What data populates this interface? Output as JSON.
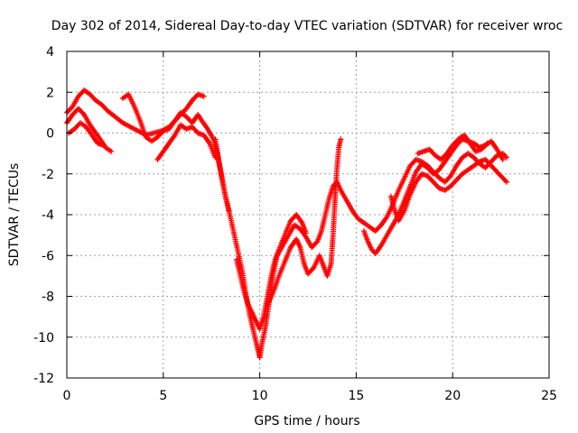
{
  "chart_data": {
    "type": "scatter",
    "title": "Day 302 of 2014, Sidereal Day-to-day VTEC variation (SDTVAR) for receiver wroc",
    "xlabel": "GPS time / hours",
    "ylabel": "SDTVAR / TECUs",
    "xlim": [
      0,
      25
    ],
    "ylim": [
      -12,
      4
    ],
    "xticks": [
      0,
      5,
      10,
      15,
      20,
      25
    ],
    "yticks": [
      -12,
      -10,
      -8,
      -6,
      -4,
      -2,
      0,
      2,
      4
    ],
    "grid": true,
    "marker": "+",
    "series": [
      {
        "name": "satellite-track-1",
        "color": "#ff0000",
        "points": [
          [
            0.0,
            1.0
          ],
          [
            0.3,
            1.3
          ],
          [
            0.6,
            1.8
          ],
          [
            0.9,
            2.1
          ],
          [
            1.2,
            1.9
          ],
          [
            1.5,
            1.6
          ],
          [
            1.8,
            1.4
          ],
          [
            2.1,
            1.1
          ],
          [
            2.5,
            0.8
          ],
          [
            2.9,
            0.5
          ],
          [
            3.3,
            0.3
          ],
          [
            3.7,
            0.1
          ],
          [
            4.1,
            -0.1
          ],
          [
            4.5,
            0.0
          ],
          [
            4.9,
            0.1
          ],
          [
            5.3,
            0.3
          ],
          [
            5.6,
            0.6
          ],
          [
            5.9,
            0.9
          ],
          [
            6.2,
            1.2
          ],
          [
            6.5,
            1.6
          ],
          [
            6.8,
            1.9
          ],
          [
            7.1,
            1.8
          ]
        ]
      },
      {
        "name": "satellite-track-2",
        "color": "#ff0000",
        "points": [
          [
            0.0,
            0.5
          ],
          [
            0.3,
            0.9
          ],
          [
            0.6,
            1.2
          ],
          [
            0.9,
            0.9
          ],
          [
            1.2,
            0.4
          ],
          [
            1.5,
            0.0
          ],
          [
            1.8,
            -0.4
          ],
          [
            2.0,
            -0.7
          ],
          [
            2.3,
            -0.9
          ]
        ]
      },
      {
        "name": "satellite-track-3",
        "color": "#ff0000",
        "points": [
          [
            0.1,
            0.0
          ],
          [
            0.4,
            0.2
          ],
          [
            0.7,
            0.5
          ],
          [
            1.0,
            0.3
          ],
          [
            1.3,
            -0.1
          ],
          [
            1.6,
            -0.5
          ],
          [
            1.9,
            -0.6
          ]
        ]
      },
      {
        "name": "satellite-track-4",
        "color": "#ff0000",
        "points": [
          [
            2.9,
            1.7
          ],
          [
            3.2,
            1.9
          ],
          [
            3.5,
            1.3
          ],
          [
            3.8,
            0.6
          ],
          [
            4.1,
            -0.2
          ],
          [
            4.4,
            -0.4
          ],
          [
            4.7,
            -0.2
          ],
          [
            5.0,
            0.1
          ],
          [
            5.3,
            0.2
          ],
          [
            5.6,
            0.6
          ],
          [
            5.9,
            1.0
          ],
          [
            6.2,
            0.8
          ],
          [
            6.5,
            0.5
          ],
          [
            6.8,
            0.9
          ],
          [
            7.0,
            0.6
          ],
          [
            7.3,
            0.2
          ],
          [
            7.6,
            -0.3
          ],
          [
            7.8,
            -1.0
          ],
          [
            8.0,
            -2.0
          ],
          [
            8.2,
            -3.0
          ],
          [
            8.4,
            -3.8
          ]
        ]
      },
      {
        "name": "satellite-track-5",
        "color": "#ff0000",
        "points": [
          [
            4.7,
            -1.3
          ],
          [
            5.0,
            -0.9
          ],
          [
            5.3,
            -0.5
          ],
          [
            5.6,
            -0.1
          ],
          [
            5.9,
            0.4
          ],
          [
            6.2,
            0.2
          ],
          [
            6.5,
            0.3
          ],
          [
            6.8,
            0.0
          ],
          [
            7.1,
            -0.1
          ],
          [
            7.4,
            -0.5
          ],
          [
            7.7,
            -1.2
          ]
        ]
      },
      {
        "name": "satellite-track-6",
        "color": "#ff0000",
        "points": [
          [
            7.7,
            -0.3
          ],
          [
            7.9,
            -1.5
          ],
          [
            8.2,
            -3.0
          ],
          [
            8.5,
            -4.2
          ],
          [
            8.8,
            -5.5
          ],
          [
            9.1,
            -6.8
          ],
          [
            9.3,
            -8.0
          ],
          [
            9.5,
            -9.0
          ],
          [
            9.7,
            -9.8
          ],
          [
            9.9,
            -10.6
          ],
          [
            10.0,
            -11.0
          ],
          [
            10.1,
            -10.4
          ],
          [
            10.3,
            -9.5
          ],
          [
            10.5,
            -8.2
          ],
          [
            10.7,
            -6.9
          ],
          [
            10.9,
            -6.0
          ],
          [
            11.2,
            -5.5
          ],
          [
            11.5,
            -5.0
          ],
          [
            11.8,
            -4.5
          ],
          [
            12.1,
            -4.7
          ],
          [
            12.4,
            -5.1
          ],
          [
            12.7,
            -5.6
          ],
          [
            13.0,
            -5.3
          ],
          [
            13.2,
            -4.8
          ],
          [
            13.4,
            -4.0
          ],
          [
            13.6,
            -3.2
          ],
          [
            13.8,
            -2.6
          ],
          [
            14.0,
            -2.4
          ],
          [
            14.2,
            -2.8
          ],
          [
            14.5,
            -3.3
          ],
          [
            14.8,
            -3.8
          ],
          [
            15.1,
            -4.2
          ],
          [
            15.4,
            -4.4
          ],
          [
            15.7,
            -4.6
          ],
          [
            16.0,
            -4.8
          ],
          [
            16.3,
            -4.5
          ],
          [
            16.6,
            -4.1
          ],
          [
            16.9,
            -3.5
          ],
          [
            17.2,
            -2.8
          ],
          [
            17.5,
            -2.2
          ],
          [
            17.8,
            -1.6
          ],
          [
            18.1,
            -1.3
          ],
          [
            18.4,
            -1.4
          ],
          [
            18.7,
            -1.6
          ],
          [
            19.0,
            -1.9
          ],
          [
            19.3,
            -2.2
          ],
          [
            19.6,
            -2.4
          ],
          [
            19.9,
            -2.1
          ],
          [
            20.2,
            -1.6
          ],
          [
            20.5,
            -1.2
          ],
          [
            20.8,
            -1.0
          ],
          [
            21.1,
            -1.2
          ],
          [
            21.4,
            -1.5
          ],
          [
            21.7,
            -1.7
          ],
          [
            22.0,
            -1.4
          ],
          [
            22.3,
            -1.1
          ],
          [
            22.6,
            -1.0
          ],
          [
            22.8,
            -1.2
          ]
        ]
      },
      {
        "name": "satellite-track-7",
        "color": "#ff0000",
        "points": [
          [
            8.8,
            -6.2
          ],
          [
            9.0,
            -7.0
          ],
          [
            9.2,
            -7.8
          ],
          [
            9.4,
            -8.4
          ],
          [
            9.6,
            -8.8
          ],
          [
            9.8,
            -9.2
          ],
          [
            10.0,
            -9.6
          ],
          [
            10.2,
            -9.0
          ],
          [
            10.4,
            -8.0
          ],
          [
            10.6,
            -7.0
          ],
          [
            10.8,
            -6.2
          ],
          [
            11.0,
            -5.7
          ],
          [
            11.3,
            -5.0
          ],
          [
            11.6,
            -4.3
          ],
          [
            11.9,
            -4.0
          ],
          [
            12.2,
            -4.4
          ],
          [
            12.4,
            -4.9
          ]
        ]
      },
      {
        "name": "satellite-track-8",
        "color": "#ff0000",
        "points": [
          [
            10.4,
            -8.4
          ],
          [
            10.7,
            -7.8
          ],
          [
            11.0,
            -7.0
          ],
          [
            11.3,
            -6.3
          ],
          [
            11.6,
            -5.6
          ],
          [
            11.9,
            -5.2
          ],
          [
            12.1,
            -5.6
          ],
          [
            12.3,
            -6.4
          ],
          [
            12.5,
            -6.9
          ],
          [
            12.8,
            -6.6
          ],
          [
            13.1,
            -6.0
          ],
          [
            13.3,
            -6.5
          ],
          [
            13.5,
            -7.0
          ],
          [
            13.7,
            -6.4
          ],
          [
            13.8,
            -5.0
          ],
          [
            13.9,
            -3.3
          ],
          [
            14.0,
            -1.8
          ],
          [
            14.1,
            -0.7
          ],
          [
            14.2,
            -0.3
          ]
        ]
      },
      {
        "name": "satellite-track-9",
        "color": "#ff0000",
        "points": [
          [
            15.4,
            -4.8
          ],
          [
            15.6,
            -5.3
          ],
          [
            15.8,
            -5.7
          ],
          [
            16.0,
            -5.9
          ],
          [
            16.3,
            -5.5
          ],
          [
            16.6,
            -5.0
          ],
          [
            16.9,
            -4.5
          ],
          [
            17.2,
            -4.0
          ],
          [
            17.5,
            -3.3
          ],
          [
            17.8,
            -2.6
          ],
          [
            18.1,
            -1.9
          ],
          [
            18.4,
            -1.5
          ],
          [
            18.7,
            -1.7
          ],
          [
            19.0,
            -2.0
          ],
          [
            19.3,
            -1.8
          ],
          [
            19.6,
            -1.4
          ],
          [
            19.9,
            -1.0
          ],
          [
            20.2,
            -0.6
          ],
          [
            20.5,
            -0.3
          ],
          [
            20.8,
            -0.4
          ],
          [
            21.1,
            -0.5
          ],
          [
            21.4,
            -0.7
          ],
          [
            21.7,
            -0.6
          ],
          [
            22.0,
            -0.4
          ],
          [
            22.3,
            -0.8
          ],
          [
            22.6,
            -1.3
          ]
        ]
      },
      {
        "name": "satellite-track-10",
        "color": "#ff0000",
        "points": [
          [
            16.8,
            -3.1
          ],
          [
            17.0,
            -3.8
          ],
          [
            17.2,
            -4.3
          ],
          [
            17.5,
            -3.8
          ],
          [
            17.8,
            -3.0
          ],
          [
            18.1,
            -2.4
          ],
          [
            18.4,
            -2.0
          ],
          [
            18.7,
            -2.1
          ],
          [
            19.0,
            -2.4
          ],
          [
            19.3,
            -2.7
          ],
          [
            19.6,
            -2.8
          ],
          [
            19.9,
            -2.6
          ],
          [
            20.2,
            -2.3
          ],
          [
            20.5,
            -2.0
          ],
          [
            20.8,
            -1.8
          ],
          [
            21.1,
            -1.6
          ],
          [
            21.4,
            -1.4
          ],
          [
            21.7,
            -1.3
          ],
          [
            22.0,
            -1.6
          ],
          [
            22.3,
            -1.9
          ],
          [
            22.6,
            -2.2
          ],
          [
            22.8,
            -2.4
          ]
        ]
      },
      {
        "name": "satellite-track-11",
        "color": "#ff0000",
        "points": [
          [
            18.2,
            -1.0
          ],
          [
            18.5,
            -0.9
          ],
          [
            18.8,
            -0.8
          ],
          [
            19.1,
            -1.1
          ],
          [
            19.4,
            -1.3
          ],
          [
            19.7,
            -1.0
          ],
          [
            20.0,
            -0.6
          ],
          [
            20.3,
            -0.3
          ],
          [
            20.6,
            -0.1
          ],
          [
            20.9,
            -0.5
          ],
          [
            21.2,
            -0.9
          ],
          [
            21.5,
            -0.8
          ],
          [
            21.8,
            -0.5
          ]
        ]
      }
    ]
  }
}
